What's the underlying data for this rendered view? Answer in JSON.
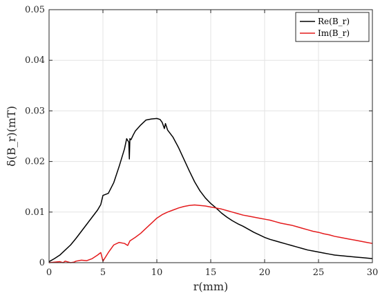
{
  "chart_data": {
    "type": "line",
    "xlabel": "r(mm)",
    "ylabel": "δ(B_r)(mT)",
    "xlim": [
      0,
      30
    ],
    "ylim": [
      0,
      0.05
    ],
    "x_ticks": [
      0,
      5,
      10,
      15,
      20,
      25,
      30
    ],
    "x_tick_labels": [
      "0",
      "5",
      "10",
      "15",
      "20",
      "25",
      "30"
    ],
    "y_ticks": [
      0,
      0.01,
      0.02,
      0.03,
      0.04,
      0.05
    ],
    "y_tick_labels": [
      "0",
      "0.01",
      "0.02",
      "0.03",
      "0.04",
      "0.05"
    ],
    "grid": true,
    "legend_position": "top-right",
    "series": [
      {
        "name": "Re(B_r)",
        "color": "#000000",
        "x": [
          0,
          0.5,
          1.0,
          1.5,
          2.0,
          2.5,
          3.0,
          3.5,
          4.0,
          4.5,
          4.8,
          5.0,
          5.5,
          6.0,
          6.5,
          7.0,
          7.2,
          7.4,
          7.45,
          7.5,
          7.6,
          7.8,
          8.0,
          8.5,
          9.0,
          9.5,
          10.0,
          10.3,
          10.5,
          10.7,
          10.8,
          11.0,
          11.5,
          12.0,
          12.5,
          13.0,
          13.5,
          14.0,
          14.5,
          15.0,
          15.5,
          16.0,
          16.5,
          17.0,
          17.5,
          18.0,
          18.5,
          19.0,
          19.5,
          20.0,
          20.5,
          21.0,
          21.5,
          22.0,
          22.5,
          23.0,
          23.5,
          24.0,
          24.5,
          25.0,
          25.5,
          26.0,
          26.5,
          27.0,
          27.5,
          28.0,
          28.5,
          29.0,
          29.5,
          30.0
        ],
        "values": [
          0.0002,
          0.0008,
          0.0015,
          0.0025,
          0.0035,
          0.0048,
          0.0062,
          0.0076,
          0.009,
          0.0104,
          0.0115,
          0.0133,
          0.0137,
          0.0158,
          0.019,
          0.0225,
          0.0245,
          0.0238,
          0.0205,
          0.0245,
          0.0243,
          0.0252,
          0.026,
          0.0272,
          0.0282,
          0.0284,
          0.0285,
          0.0283,
          0.0277,
          0.0265,
          0.0275,
          0.0262,
          0.0248,
          0.0228,
          0.0205,
          0.0182,
          0.016,
          0.0142,
          0.0128,
          0.0117,
          0.0108,
          0.0098,
          0.009,
          0.0083,
          0.0077,
          0.0072,
          0.0066,
          0.006,
          0.0055,
          0.005,
          0.0046,
          0.0043,
          0.004,
          0.0037,
          0.0034,
          0.0031,
          0.0028,
          0.0025,
          0.0023,
          0.0021,
          0.0019,
          0.0017,
          0.0015,
          0.0014,
          0.0013,
          0.0012,
          0.0011,
          0.001,
          0.0009,
          0.0008
        ]
      },
      {
        "name": "Im(B_r)",
        "color": "#e41a1c",
        "x": [
          0,
          0.5,
          1.0,
          1.3,
          1.5,
          2.0,
          2.3,
          2.5,
          3.0,
          3.5,
          4.0,
          4.5,
          4.8,
          5.0,
          5.5,
          6.0,
          6.5,
          7.0,
          7.3,
          7.5,
          8.0,
          8.5,
          9.0,
          9.5,
          10.0,
          10.5,
          11.0,
          11.5,
          12.0,
          12.5,
          13.0,
          13.5,
          14.0,
          14.5,
          15.0,
          15.5,
          16.0,
          16.5,
          17.0,
          17.5,
          18.0,
          18.5,
          19.0,
          19.5,
          20.0,
          20.5,
          21.0,
          21.5,
          22.0,
          22.5,
          23.0,
          23.5,
          24.0,
          24.5,
          25.0,
          25.5,
          26.0,
          26.5,
          27.0,
          27.5,
          28.0,
          28.5,
          29.0,
          29.5,
          30.0
        ],
        "values": [
          0.0,
          0.0001,
          0.0002,
          0.0,
          0.0003,
          0.0,
          0.0001,
          0.0003,
          0.0005,
          0.0004,
          0.0008,
          0.0015,
          0.002,
          0.0003,
          0.002,
          0.0035,
          0.004,
          0.0038,
          0.0034,
          0.0043,
          0.005,
          0.0058,
          0.0068,
          0.0078,
          0.0088,
          0.0095,
          0.01,
          0.0104,
          0.0108,
          0.0111,
          0.0113,
          0.0114,
          0.0113,
          0.0112,
          0.011,
          0.0108,
          0.0106,
          0.0103,
          0.01,
          0.0097,
          0.0094,
          0.0092,
          0.009,
          0.0088,
          0.0086,
          0.0084,
          0.0081,
          0.0078,
          0.0076,
          0.0074,
          0.0071,
          0.0068,
          0.0065,
          0.0062,
          0.006,
          0.0057,
          0.0055,
          0.0052,
          0.005,
          0.0048,
          0.0046,
          0.0044,
          0.0042,
          0.004,
          0.0038
        ]
      }
    ]
  }
}
